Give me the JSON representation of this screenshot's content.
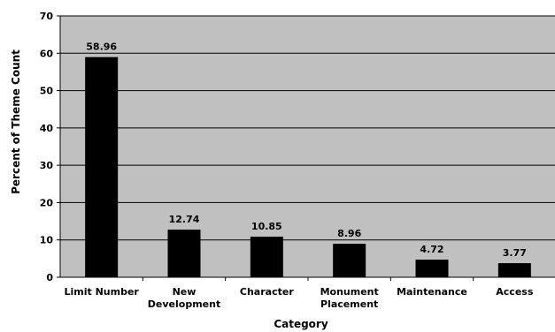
{
  "chart_data": {
    "type": "bar",
    "categories": [
      "Limit Number",
      "New Development",
      "Character",
      "Monument Placement",
      "Maintenance",
      "Access"
    ],
    "category_lines": [
      [
        "Limit Number"
      ],
      [
        "New",
        "Development"
      ],
      [
        "Character"
      ],
      [
        "Monument",
        "Placement"
      ],
      [
        "Maintenance"
      ],
      [
        "Access"
      ]
    ],
    "values": [
      58.96,
      12.74,
      10.85,
      8.96,
      4.72,
      3.77
    ],
    "value_labels": [
      "58.96",
      "12.74",
      "10.85",
      "8.96",
      "4.72",
      "3.77"
    ],
    "title": "",
    "xlabel": "Category",
    "ylabel": "Percent of Theme Count",
    "ylim": [
      0,
      70
    ],
    "yticks": [
      0,
      10,
      20,
      30,
      40,
      50,
      60,
      70
    ],
    "grid": true,
    "legend": "none",
    "colors": {
      "plot_background": "#c0c0c0",
      "bar": "#000000",
      "grid": "#000000"
    }
  }
}
